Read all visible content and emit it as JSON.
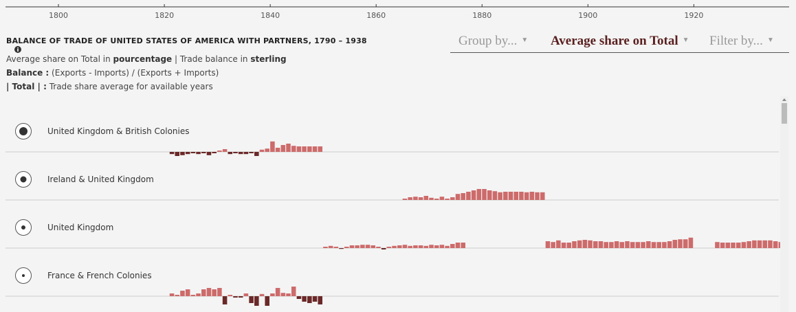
{
  "axis": {
    "xlim": [
      1790,
      1938
    ],
    "xticks": [
      1800,
      1820,
      1840,
      1860,
      1880,
      1900,
      1920
    ]
  },
  "header": {
    "title": "BALANCE OF TRADE OF UNITED STATES OF AMERICA WITH PARTNERS, 1790 – 1938"
  },
  "notes": {
    "line1": [
      "Average share on Total in ",
      "pourcentage",
      " | Trade balance in ",
      "sterling"
    ],
    "line2": [
      "Balance :",
      " (Exports - Imports) / (Exports + Imports)"
    ],
    "line3": [
      "| Total | :",
      " Trade share average for available years"
    ]
  },
  "controls": [
    "Group by...",
    "Average share on Total",
    "Filter by..."
  ],
  "positive_color": "#cd6b6b",
  "negative_color": "#6b2828",
  "rows": [
    {
      "name": "United Kingdom & British Colonies",
      "x": [
        1821,
        1822,
        1823,
        1824,
        1825,
        1826,
        1827,
        1828,
        1829,
        1830,
        1831,
        1832,
        1833,
        1834,
        1835,
        1836,
        1837,
        1838,
        1839,
        1840,
        1841,
        1842,
        1843,
        1844,
        1845,
        1846,
        1847,
        1848,
        1849
      ],
      "values": [
        -0.08,
        -0.15,
        -0.12,
        -0.08,
        -0.05,
        -0.08,
        -0.05,
        -0.12,
        -0.05,
        0.05,
        0.1,
        -0.08,
        -0.05,
        -0.08,
        -0.08,
        -0.05,
        -0.15,
        0.08,
        0.12,
        0.38,
        0.15,
        0.25,
        0.3,
        0.22,
        0.2,
        0.2,
        0.2,
        0.2,
        0.2
      ]
    },
    {
      "name": "Ireland & United Kingdom",
      "x": [
        1865,
        1866,
        1867,
        1868,
        1869,
        1870,
        1871,
        1872,
        1873,
        1874,
        1875,
        1876,
        1877,
        1878,
        1879,
        1880,
        1881,
        1882,
        1883,
        1884,
        1885,
        1886,
        1887,
        1888,
        1889,
        1890,
        1891
      ],
      "values": [
        0.05,
        0.1,
        0.12,
        0.1,
        0.15,
        0.08,
        0.05,
        0.12,
        0.05,
        0.1,
        0.22,
        0.25,
        0.3,
        0.35,
        0.4,
        0.4,
        0.35,
        0.32,
        0.28,
        0.3,
        0.3,
        0.3,
        0.3,
        0.28,
        0.3,
        0.28,
        0.28
      ]
    },
    {
      "name": "United Kingdom",
      "x": [
        1850,
        1851,
        1852,
        1853,
        1854,
        1855,
        1856,
        1857,
        1858,
        1859,
        1860,
        1861,
        1862,
        1863,
        1864,
        1865,
        1866,
        1867,
        1868,
        1869,
        1870,
        1871,
        1872,
        1873,
        1874,
        1875,
        1876,
        1892,
        1893,
        1894,
        1895,
        1896,
        1897,
        1898,
        1899,
        1900,
        1901,
        1902,
        1903,
        1904,
        1905,
        1906,
        1907,
        1908,
        1909,
        1910,
        1911,
        1912,
        1913,
        1914,
        1915,
        1916,
        1917,
        1918,
        1919,
        1924,
        1925,
        1926,
        1927,
        1928,
        1929,
        1930,
        1931,
        1932,
        1933,
        1934,
        1935,
        1936
      ],
      "values": [
        0.05,
        0.08,
        0.05,
        -0.03,
        0.05,
        0.1,
        0.1,
        0.12,
        0.12,
        0.1,
        0.05,
        -0.05,
        0.05,
        0.08,
        0.1,
        0.12,
        0.08,
        0.1,
        0.1,
        0.08,
        0.12,
        0.1,
        0.12,
        0.08,
        0.15,
        0.2,
        0.2,
        0.25,
        0.22,
        0.28,
        0.2,
        0.2,
        0.25,
        0.28,
        0.3,
        0.28,
        0.25,
        0.25,
        0.22,
        0.22,
        0.25,
        0.22,
        0.25,
        0.22,
        0.22,
        0.22,
        0.25,
        0.22,
        0.22,
        0.22,
        0.25,
        0.3,
        0.32,
        0.32,
        0.38,
        0.22,
        0.2,
        0.2,
        0.2,
        0.2,
        0.22,
        0.25,
        0.28,
        0.28,
        0.28,
        0.28,
        0.25,
        0.22
      ]
    },
    {
      "name": "France & French Colonies",
      "x": [
        1821,
        1822,
        1823,
        1824,
        1825,
        1826,
        1827,
        1828,
        1829,
        1830,
        1831,
        1832,
        1833,
        1834,
        1835,
        1836,
        1837,
        1838,
        1839,
        1840,
        1841,
        1842,
        1843,
        1844,
        1845,
        1846,
        1847,
        1848,
        1849
      ],
      "values": [
        0.1,
        0.05,
        0.2,
        0.25,
        0.05,
        0.1,
        0.25,
        0.3,
        0.25,
        0.3,
        -0.3,
        0.05,
        -0.05,
        -0.05,
        0.1,
        -0.25,
        -0.35,
        0.08,
        -0.35,
        0.1,
        0.3,
        0.12,
        0.1,
        0.35,
        -0.1,
        -0.2,
        -0.25,
        -0.2,
        -0.3
      ]
    }
  ]
}
